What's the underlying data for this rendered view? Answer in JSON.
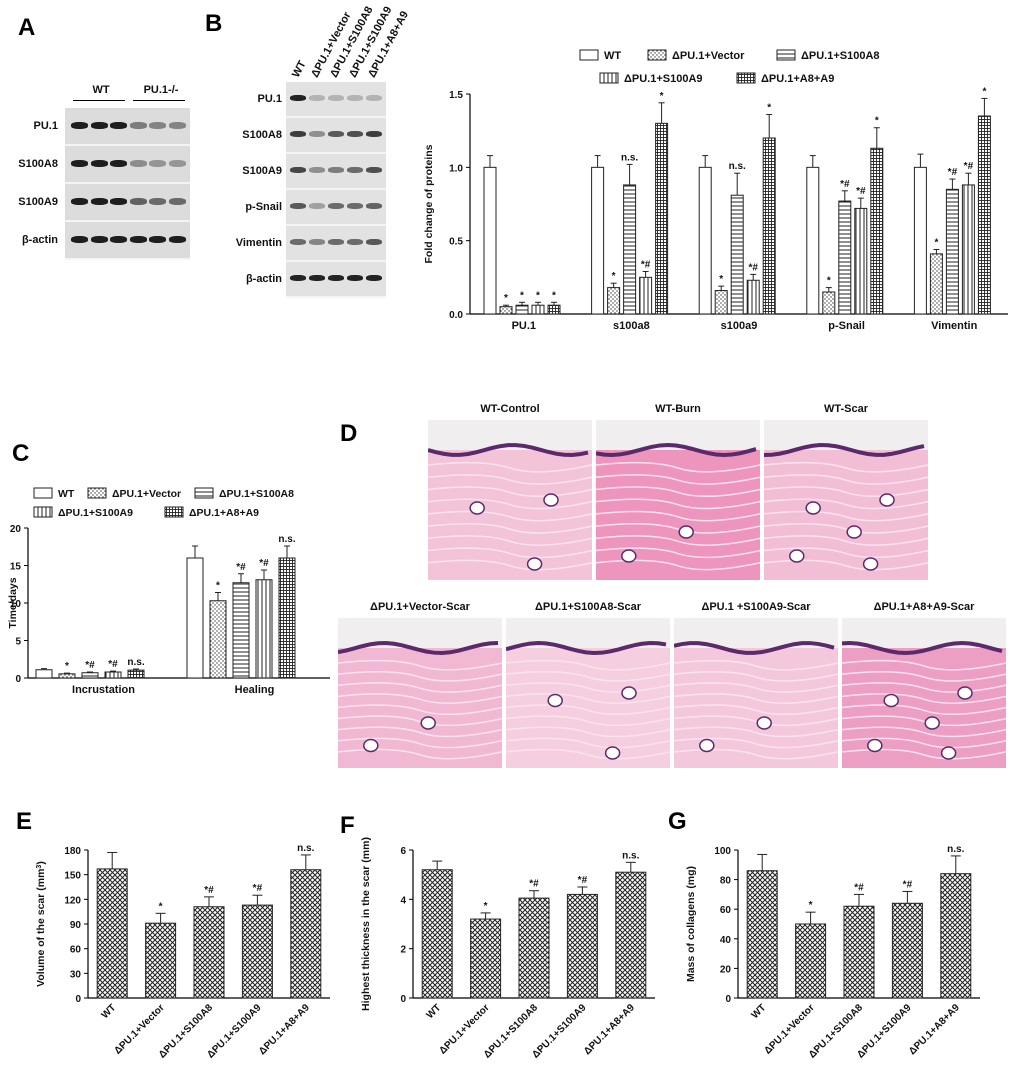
{
  "panels": {
    "A": {
      "label": "A",
      "groups": [
        "WT",
        "PU.1-/-"
      ],
      "rows": [
        "PU.1",
        "S100A8",
        "S100A9",
        "β-actin"
      ]
    },
    "B": {
      "label": "B",
      "lanes": [
        "WT",
        "ΔPU.1+Vector",
        "ΔPU.1+S100A8",
        "ΔPU.1+S100A9",
        "ΔPU.1+A8+A9"
      ],
      "rows": [
        "PU.1",
        "S100A8",
        "S100A9",
        "p-Snail",
        "Vimentin",
        "β-actin"
      ]
    },
    "C": {
      "label": "C"
    },
    "D": {
      "label": "D",
      "images": [
        "WT-Control",
        "WT-Burn",
        "WT-Scar",
        "ΔPU.1+Vector-Scar",
        "ΔPU.1+S100A8-Scar",
        "ΔPU.1 +S100A9-Scar",
        "ΔPU.1+A8+A9-Scar"
      ]
    },
    "E": {
      "label": "E"
    },
    "F": {
      "label": "F"
    },
    "G": {
      "label": "G"
    }
  },
  "colors": {
    "bar_stroke": "#222222",
    "bar_fill": "#ffffff",
    "histo_pink": "#f0b6cf",
    "histo_purple": "#5a2a6a"
  },
  "chart_data": [
    {
      "id": "B",
      "type": "bar",
      "categories": [
        "PU.1",
        "s100a8",
        "s100a9",
        "p-Snail",
        "Vimentin"
      ],
      "series": [
        {
          "name": "WT",
          "pattern": "open",
          "values": [
            1.0,
            1.0,
            1.0,
            1.0,
            1.0
          ],
          "errors": [
            0.08,
            0.08,
            0.08,
            0.08,
            0.09
          ],
          "labels": [
            "",
            "",
            "",
            "",
            ""
          ]
        },
        {
          "name": "ΔPU.1+Vector",
          "pattern": "dots",
          "values": [
            0.05,
            0.18,
            0.16,
            0.15,
            0.41
          ],
          "errors": [
            0.01,
            0.03,
            0.03,
            0.03,
            0.03
          ],
          "labels": [
            "*",
            "*",
            "*",
            "*",
            "*"
          ]
        },
        {
          "name": "ΔPU.1+S100A8",
          "pattern": "hlines",
          "values": [
            0.06,
            0.88,
            0.81,
            0.77,
            0.85
          ],
          "errors": [
            0.02,
            0.14,
            0.15,
            0.07,
            0.07
          ],
          "labels": [
            "*",
            "n.s.",
            "n.s.",
            "*#",
            "*#"
          ]
        },
        {
          "name": "ΔPU.1+S100A9",
          "pattern": "vlines",
          "values": [
            0.06,
            0.25,
            0.23,
            0.72,
            0.88
          ],
          "errors": [
            0.02,
            0.04,
            0.04,
            0.07,
            0.08
          ],
          "labels": [
            "*",
            "*#",
            "*#",
            "*#",
            "*#"
          ]
        },
        {
          "name": "ΔPU.1+A8+A9",
          "pattern": "grid",
          "values": [
            0.06,
            1.3,
            1.2,
            1.13,
            1.35
          ],
          "errors": [
            0.02,
            0.14,
            0.16,
            0.14,
            0.12
          ],
          "labels": [
            "*",
            "*",
            "*",
            "*",
            "*"
          ]
        }
      ],
      "ylabel": "Fold change of proteins",
      "ylim": [
        0,
        1.5
      ],
      "yticks": [
        "0.0",
        "0.5",
        "1.0",
        "1.5"
      ],
      "legend": "top"
    },
    {
      "id": "C",
      "type": "bar",
      "categories": [
        "Incrustation",
        "Healing"
      ],
      "series": [
        {
          "name": "WT",
          "pattern": "open",
          "values": [
            1.1,
            16.0
          ],
          "errors": [
            0.15,
            1.6
          ],
          "labels": [
            "",
            ""
          ]
        },
        {
          "name": "ΔPU.1+Vector",
          "pattern": "dots",
          "values": [
            0.55,
            10.3
          ],
          "errors": [
            0.1,
            1.1
          ],
          "labels": [
            "*",
            "*"
          ]
        },
        {
          "name": "ΔPU.1+S100A8",
          "pattern": "hlines",
          "values": [
            0.7,
            12.7
          ],
          "errors": [
            0.1,
            1.2
          ],
          "labels": [
            "*#",
            "*#"
          ]
        },
        {
          "name": "ΔPU.1+S100A9",
          "pattern": "vlines",
          "values": [
            0.8,
            13.1
          ],
          "errors": [
            0.12,
            1.3
          ],
          "labels": [
            "*#",
            "*#"
          ]
        },
        {
          "name": "ΔPU.1+A8+A9",
          "pattern": "grid",
          "values": [
            1.05,
            16.0
          ],
          "errors": [
            0.15,
            1.6
          ],
          "labels": [
            "n.s.",
            "n.s."
          ]
        }
      ],
      "ylabel": "Time/days",
      "ylim": [
        0,
        20
      ],
      "yticks": [
        "0",
        "5",
        "10",
        "15",
        "20"
      ],
      "legend": "top"
    },
    {
      "id": "E",
      "type": "bar",
      "categories": [
        "WT",
        "ΔPU.1+Vector",
        "ΔPU.1+S100A8",
        "ΔPU.1+S100A9",
        "ΔPU.1+A8+A9"
      ],
      "values": [
        157,
        91,
        111,
        113,
        156
      ],
      "errors": [
        20,
        12,
        12,
        12,
        18
      ],
      "labels": [
        "",
        "*",
        "*#",
        "*#",
        "n.s."
      ],
      "ylabel": "Volume of the scar (mm",
      "ylabel_sup": "3",
      "ylabel_end": ")",
      "ylim": [
        0,
        180
      ],
      "yticks": [
        "0",
        "30",
        "60",
        "90",
        "120",
        "150",
        "180"
      ]
    },
    {
      "id": "F",
      "type": "bar",
      "categories": [
        "WT",
        "ΔPU.1+Vector",
        "ΔPU.1+S100A8",
        "ΔPU.1+S100A9",
        "ΔPU.1+A8+A9"
      ],
      "values": [
        5.2,
        3.2,
        4.05,
        4.2,
        5.1
      ],
      "errors": [
        0.35,
        0.25,
        0.3,
        0.3,
        0.4
      ],
      "labels": [
        "",
        "*",
        "*#",
        "*#",
        "n.s."
      ],
      "ylabel": "Highest thickness in the scar (mm)",
      "ylim": [
        0,
        6
      ],
      "yticks": [
        "0",
        "2",
        "4",
        "6"
      ]
    },
    {
      "id": "G",
      "type": "bar",
      "categories": [
        "WT",
        "ΔPU.1+Vector",
        "ΔPU.1+S100A8",
        "ΔPU.1+S100A9",
        "ΔPU.1+A8+A9"
      ],
      "values": [
        86,
        50,
        62,
        64,
        84
      ],
      "errors": [
        11,
        8,
        8,
        8,
        12
      ],
      "labels": [
        "",
        "*",
        "*#",
        "*#",
        "n.s."
      ],
      "ylabel": "Mass of collagens (mg)",
      "ylim": [
        0,
        100
      ],
      "yticks": [
        "0",
        "20",
        "40",
        "60",
        "80",
        "100"
      ]
    }
  ]
}
